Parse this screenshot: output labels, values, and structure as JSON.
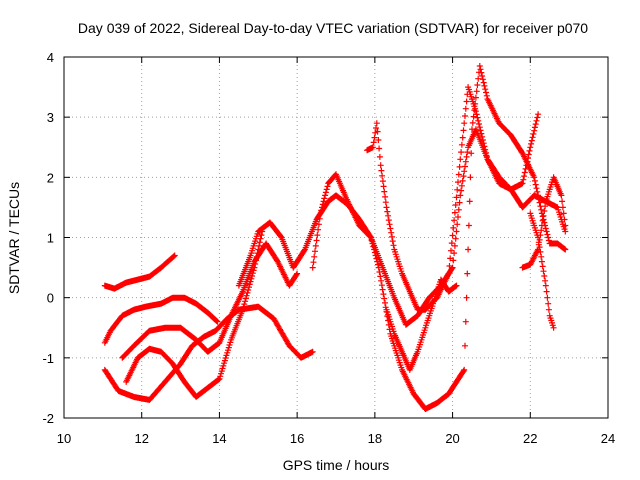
{
  "chart_data": {
    "type": "scatter",
    "title": "Day 039 of 2022, Sidereal Day-to-day VTEC variation (SDTVAR) for receiver p070",
    "xlabel": "GPS time / hours",
    "ylabel": "SDTVAR / TECUs",
    "xlim": [
      10,
      24
    ],
    "ylim": [
      -2,
      4
    ],
    "xticks": [
      10,
      12,
      14,
      16,
      18,
      20,
      22,
      24
    ],
    "yticks": [
      -2,
      -1,
      0,
      1,
      2,
      3,
      4
    ],
    "grid": true,
    "marker": "plus",
    "color": "#ff0000",
    "series": [
      {
        "name": "s1",
        "x": [
          11.05,
          11.3,
          11.6,
          11.9,
          12.2,
          12.5,
          12.85
        ],
        "y": [
          0.2,
          0.15,
          0.25,
          0.3,
          0.35,
          0.5,
          0.7
        ]
      },
      {
        "name": "s2",
        "x": [
          11.05,
          11.2,
          11.5,
          11.8,
          12.1,
          12.5,
          12.8,
          13.1,
          13.4,
          13.7,
          13.95
        ],
        "y": [
          -0.75,
          -0.55,
          -0.3,
          -0.2,
          -0.15,
          -0.1,
          0.0,
          0.0,
          -0.1,
          -0.25,
          -0.4
        ]
      },
      {
        "name": "s3",
        "x": [
          11.05,
          11.4,
          11.8,
          12.2,
          12.6,
          13.0,
          13.3,
          13.6,
          13.9,
          14.2,
          14.5,
          15.0,
          15.4,
          15.8,
          16.1,
          16.4
        ],
        "y": [
          -1.2,
          -1.55,
          -1.65,
          -1.7,
          -1.4,
          -1.1,
          -0.8,
          -0.65,
          -0.55,
          -0.35,
          -0.2,
          -0.15,
          -0.35,
          -0.8,
          -1.0,
          -0.9
        ]
      },
      {
        "name": "s4",
        "x": [
          11.5,
          11.8,
          12.2,
          12.6,
          13.0,
          13.4,
          13.7,
          14.0,
          14.3,
          14.6,
          14.9,
          15.2,
          15.5,
          15.8,
          16.0
        ],
        "y": [
          -1.0,
          -0.8,
          -0.55,
          -0.5,
          -0.5,
          -0.7,
          -0.9,
          -0.75,
          -0.3,
          0.1,
          0.6,
          0.9,
          0.6,
          0.2,
          0.4
        ]
      },
      {
        "name": "s5",
        "x": [
          11.6,
          11.9,
          12.2,
          12.5,
          12.8,
          13.1,
          13.4,
          13.7,
          14.0,
          14.3,
          14.6,
          14.9,
          15.1
        ],
        "y": [
          -1.4,
          -1.0,
          -0.85,
          -0.9,
          -1.1,
          -1.4,
          -1.65,
          -1.5,
          -1.35,
          -0.7,
          -0.2,
          0.5,
          1.1
        ]
      },
      {
        "name": "s6",
        "x": [
          14.5,
          14.8,
          15.0,
          15.3,
          15.6,
          15.9,
          16.2,
          16.5,
          16.8,
          17.0,
          17.3,
          17.6,
          17.9,
          18.2,
          18.5,
          18.8,
          19.1,
          19.4,
          19.7,
          20.0,
          20.2,
          20.4,
          20.6,
          20.9,
          21.2,
          21.5,
          21.8,
          22.1,
          22.4,
          22.7,
          22.9
        ],
        "y": [
          0.2,
          0.7,
          1.1,
          1.25,
          1.0,
          0.5,
          0.8,
          1.3,
          1.6,
          1.7,
          1.55,
          1.3,
          1.0,
          0.5,
          0.0,
          -0.45,
          -0.3,
          0.0,
          0.2,
          0.5,
          1.7,
          2.5,
          2.8,
          2.3,
          2.0,
          1.8,
          1.5,
          1.7,
          1.6,
          1.5,
          1.1
        ]
      },
      {
        "name": "s7",
        "x": [
          16.4,
          16.6,
          16.8,
          17.0,
          17.3,
          17.6,
          17.9,
          18.1,
          18.4,
          18.7,
          19.0,
          19.3,
          19.6,
          19.9,
          20.1,
          20.3,
          20.5,
          20.7,
          20.9,
          21.2,
          21.5,
          21.8,
          22.1,
          22.3,
          22.5,
          22.7,
          22.9
        ],
        "y": [
          0.5,
          1.4,
          1.9,
          2.05,
          1.6,
          1.2,
          1.0,
          0.5,
          -0.6,
          -1.2,
          -1.6,
          -1.85,
          -1.75,
          -1.6,
          -1.4,
          -1.2,
          2.8,
          3.85,
          3.3,
          2.9,
          2.7,
          2.4,
          2.0,
          1.4,
          0.9,
          0.9,
          0.8
        ]
      },
      {
        "name": "s8",
        "x": [
          17.8,
          17.95,
          18.05,
          18.15,
          18.3,
          18.5,
          18.7,
          18.9,
          19.1,
          19.3,
          19.6,
          19.9,
          20.2,
          20.4,
          20.6,
          20.9,
          21.2,
          21.5,
          21.8,
          22.0,
          22.2
        ],
        "y": [
          2.45,
          2.5,
          2.9,
          2.2,
          1.5,
          0.8,
          0.4,
          0.1,
          -0.2,
          -0.2,
          0.0,
          0.4,
          2.3,
          3.5,
          3.1,
          2.3,
          1.9,
          1.8,
          1.9,
          2.5,
          3.05
        ]
      },
      {
        "name": "s9",
        "x": [
          18.3,
          18.5,
          18.7,
          18.9,
          19.1,
          19.3,
          19.5,
          19.7,
          19.9,
          20.1
        ],
        "y": [
          -0.2,
          -0.6,
          -0.9,
          -1.2,
          -0.9,
          -0.5,
          -0.1,
          0.3,
          0.1,
          0.2
        ]
      },
      {
        "name": "s10",
        "x": [
          21.8,
          22.0,
          22.2,
          22.4,
          22.6,
          22.8,
          22.9
        ],
        "y": [
          0.5,
          0.55,
          0.8,
          1.6,
          2.0,
          1.7,
          1.2
        ]
      },
      {
        "name": "s11",
        "x": [
          22.0,
          22.2,
          22.4,
          22.5,
          22.6
        ],
        "y": [
          1.4,
          1.0,
          0.2,
          -0.3,
          -0.5
        ]
      }
    ]
  }
}
